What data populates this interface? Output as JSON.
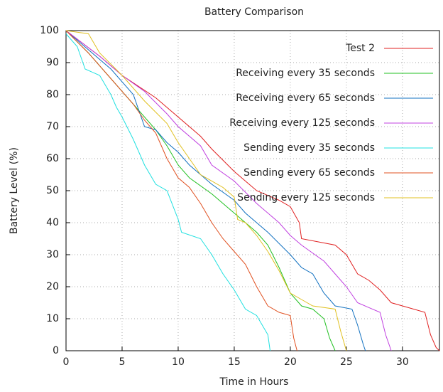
{
  "chart_data": {
    "type": "line",
    "title": "Battery Comparison",
    "x_label": "Time in Hours",
    "y_label": "Battery Level (%)",
    "xlim": [
      0,
      33.3
    ],
    "ylim": [
      0,
      100
    ],
    "xticks": [
      0,
      5,
      10,
      15,
      20,
      25,
      30
    ],
    "yticks": [
      0,
      10,
      20,
      30,
      40,
      50,
      60,
      70,
      80,
      90,
      100
    ],
    "grid": true,
    "legend": "top-right",
    "series": [
      {
        "name": "Test 2",
        "color": "#e02020",
        "x": [
          0,
          3,
          5,
          8,
          10,
          12,
          13,
          15,
          17,
          19,
          20,
          20.8,
          21,
          24,
          25,
          26,
          27,
          28,
          29,
          30,
          32,
          32.5,
          33,
          33.3
        ],
        "values": [
          100,
          92,
          86,
          79,
          73,
          67,
          63,
          56,
          50,
          47,
          45,
          40,
          35,
          33,
          30,
          24,
          22,
          19,
          15,
          14,
          12,
          5,
          1,
          0
        ]
      },
      {
        "name": "Receiving every 35 seconds",
        "color": "#20c020",
        "x": [
          0,
          2,
          4,
          6,
          8,
          9,
          10,
          11,
          13,
          15,
          17,
          18,
          19,
          20,
          21,
          22,
          23,
          23.5,
          24
        ],
        "values": [
          100,
          93,
          85,
          77,
          69,
          64,
          58,
          54,
          49,
          43,
          37,
          33,
          26,
          18,
          14,
          13,
          10,
          4,
          0
        ]
      },
      {
        "name": "Receiving every 65 seconds",
        "color": "#1070c0",
        "x": [
          0,
          2,
          4,
          6,
          7,
          8,
          9,
          10,
          11,
          13,
          15,
          16,
          18,
          20,
          21,
          22,
          23,
          24,
          25.5,
          26,
          26.5,
          26.7
        ],
        "values": [
          100,
          94,
          88,
          80,
          70,
          69,
          65,
          62,
          58,
          52,
          47,
          43,
          37,
          30,
          26,
          24,
          18,
          14,
          13,
          8,
          2,
          0
        ]
      },
      {
        "name": "Receiving every 125 seconds",
        "color": "#c040e0",
        "x": [
          0,
          3,
          5,
          7,
          9,
          10,
          12,
          13,
          15,
          17,
          19,
          20,
          21,
          23,
          24,
          25,
          26,
          27,
          28,
          28.5,
          29
        ],
        "values": [
          100,
          92,
          86,
          81,
          74,
          70,
          64,
          58,
          53,
          46,
          40,
          36,
          33,
          28,
          24,
          20,
          15,
          13.5,
          12,
          5,
          0
        ]
      },
      {
        "name": "Sending every 35 seconds",
        "color": "#20e0e0",
        "x": [
          0,
          1,
          1.7,
          3,
          4,
          4.5,
          5,
          6,
          7,
          8,
          9,
          10,
          10.3,
          12,
          13,
          14,
          15,
          16,
          17,
          18,
          18.2
        ],
        "values": [
          99,
          95,
          88,
          86,
          80,
          76,
          73,
          66,
          58,
          52,
          50,
          41,
          37,
          35,
          30,
          24,
          19,
          13,
          11,
          5,
          0
        ]
      },
      {
        "name": "Sending every 65 seconds",
        "color": "#e05020",
        "x": [
          0,
          2,
          4,
          6,
          7,
          8,
          9,
          10,
          11,
          12,
          13,
          14,
          15,
          16,
          17,
          18,
          19,
          20,
          20.3,
          20.6
        ],
        "values": [
          100,
          93,
          85,
          77,
          72,
          68,
          60,
          54,
          51,
          46,
          40,
          35,
          31,
          27,
          20,
          14,
          12,
          11,
          4,
          0
        ]
      },
      {
        "name": "Sending every 125 seconds",
        "color": "#e0c020",
        "x": [
          0,
          2,
          3,
          5,
          7,
          9,
          10,
          11,
          12,
          14,
          15,
          15.3,
          16,
          17,
          18,
          19,
          20,
          21,
          22,
          24,
          24.5,
          25
        ],
        "values": [
          100,
          99,
          93,
          86,
          78,
          71,
          65,
          60,
          55,
          51,
          48,
          41,
          40,
          36,
          31,
          25,
          18,
          16,
          14,
          13,
          6,
          0
        ]
      }
    ]
  }
}
